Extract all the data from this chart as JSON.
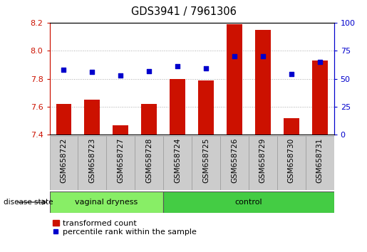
{
  "title": "GDS3941 / 7961306",
  "categories": [
    "GSM658722",
    "GSM658723",
    "GSM658727",
    "GSM658728",
    "GSM658724",
    "GSM658725",
    "GSM658726",
    "GSM658729",
    "GSM658730",
    "GSM658731"
  ],
  "bar_values": [
    7.62,
    7.65,
    7.47,
    7.62,
    7.8,
    7.79,
    8.19,
    8.15,
    7.52,
    7.93
  ],
  "percentile_values": [
    58,
    56,
    53,
    57,
    61,
    59,
    70,
    70,
    54,
    65
  ],
  "ylim_left": [
    7.4,
    8.2
  ],
  "ylim_right": [
    0,
    100
  ],
  "yticks_left": [
    7.4,
    7.6,
    7.8,
    8.0,
    8.2
  ],
  "yticks_right": [
    0,
    25,
    50,
    75,
    100
  ],
  "bar_color": "#cc1100",
  "dot_color": "#0000cc",
  "group1_label": "vaginal dryness",
  "group2_label": "control",
  "group1_count": 4,
  "group2_count": 6,
  "group1_color": "#88ee66",
  "group2_color": "#44cc44",
  "disease_state_label": "disease state",
  "legend_bar_label": "transformed count",
  "legend_dot_label": "percentile rank within the sample",
  "label_color_left": "#cc1100",
  "label_color_right": "#0000cc",
  "grid_color": "#aaaaaa",
  "xlabels_bg": "#cccccc",
  "xlabels_border": "#999999"
}
